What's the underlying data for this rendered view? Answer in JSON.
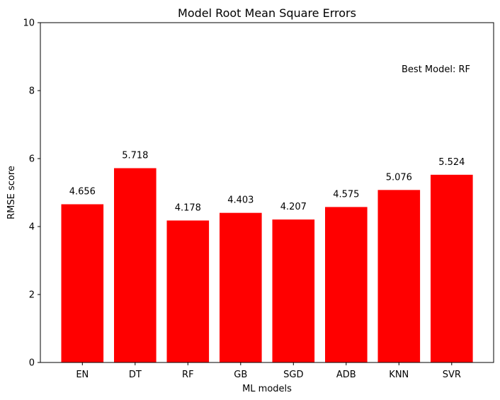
{
  "chart_data": {
    "type": "bar",
    "title": "Model Root Mean Square Errors",
    "xlabel": "ML models",
    "ylabel": "RMSE score",
    "categories": [
      "EN",
      "DT",
      "RF",
      "GB",
      "SGD",
      "ADB",
      "KNN",
      "SVR"
    ],
    "values": [
      4.656,
      5.718,
      4.178,
      4.403,
      4.207,
      4.575,
      5.076,
      5.524
    ],
    "value_labels": [
      "4.656",
      "5.718",
      "4.178",
      "4.403",
      "4.207",
      "4.575",
      "5.076",
      "5.524"
    ],
    "ylim": [
      0,
      10
    ],
    "yticks": [
      0,
      2,
      4,
      6,
      8,
      10
    ],
    "ytick_labels": [
      "0",
      "2",
      "4",
      "6",
      "8",
      "10"
    ],
    "bar_color": "#ff0000",
    "grid": false,
    "annotation": {
      "text": "Best Model: RF",
      "y": 8.5
    }
  }
}
